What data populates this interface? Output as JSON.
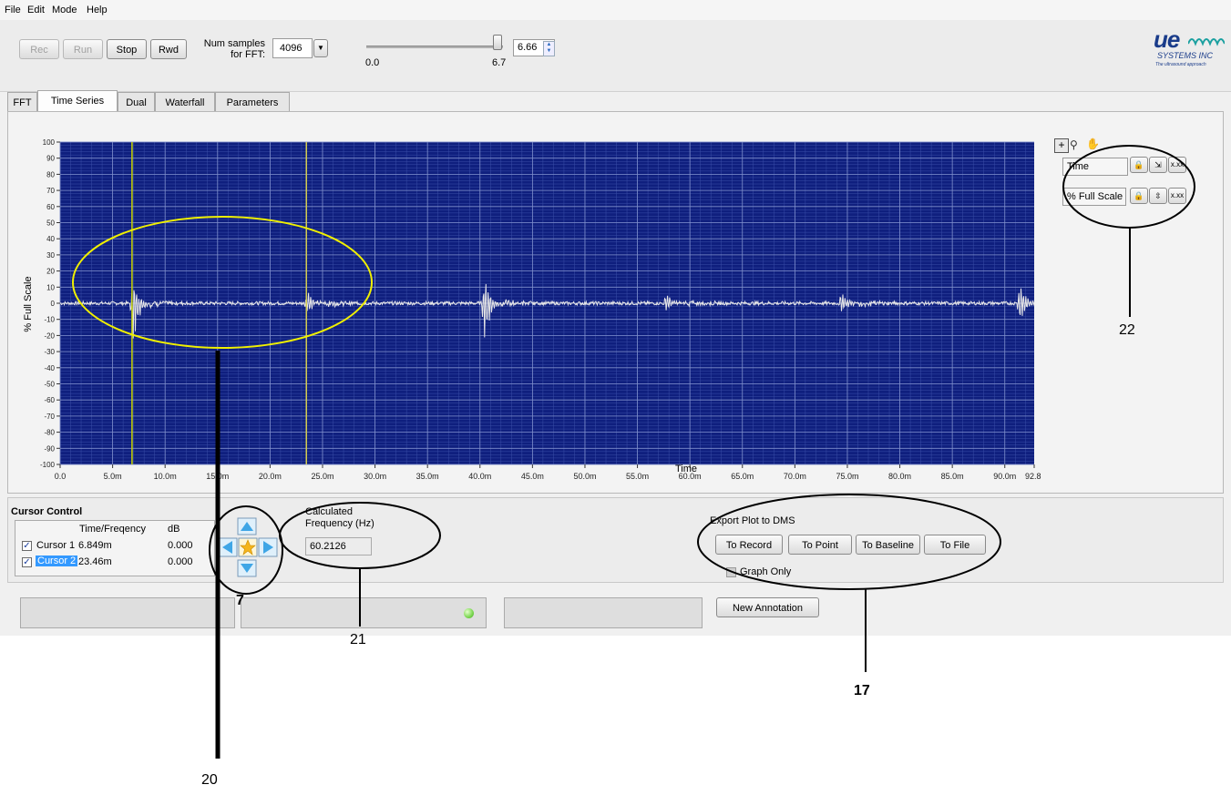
{
  "menu": [
    "File",
    "Edit",
    "Mode",
    "Help"
  ],
  "toolbar": {
    "rec_label": "Rec",
    "run_label": "Run",
    "stop_label": "Stop",
    "rwd_label": "Rwd",
    "num_samples_label_1": "Num samples",
    "num_samples_label_2": "for FFT:",
    "num_samples_value": "4096",
    "slider_min": "0.0",
    "slider_max": "6.7",
    "slider_position": 1.0,
    "slider_value": "6.66"
  },
  "logo": {
    "brand": "ue",
    "company": "SYSTEMS INC",
    "tagline": "The ultrasound approach"
  },
  "tabs": [
    {
      "label": "FFT",
      "active": false
    },
    {
      "label": "Time Series",
      "active": true
    },
    {
      "label": "Dual",
      "active": false
    },
    {
      "label": "Waterfall",
      "active": false
    },
    {
      "label": "Parameters",
      "active": false
    }
  ],
  "graph_palette": {
    "x_axis_name": "Time",
    "y_axis_name": "% Full Scale"
  },
  "chart_data": {
    "type": "line",
    "title": "",
    "xlabel": "Time",
    "ylabel": "% Full Scale",
    "xlim": [
      0,
      92.8
    ],
    "ylim": [
      -100,
      100
    ],
    "x_unit": "ms",
    "grid": true,
    "x_ticks": [
      "0.0",
      "5.0m",
      "10.0m",
      "15.0m",
      "20.0m",
      "25.0m",
      "30.0m",
      "35.0m",
      "40.0m",
      "45.0m",
      "50.0m",
      "55.0m",
      "60.0m",
      "65.0m",
      "70.0m",
      "75.0m",
      "80.0m",
      "85.0m",
      "90.0m",
      "92.8"
    ],
    "y_ticks": [
      "100",
      "90",
      "80",
      "70",
      "60",
      "50",
      "40",
      "30",
      "20",
      "10",
      "0",
      "-10",
      "-20",
      "-30",
      "-40",
      "-50",
      "-60",
      "-70",
      "-80",
      "-90",
      "-100"
    ],
    "series": [
      {
        "color": "#e8e8e8",
        "bursts": [
          {
            "t": 7.0,
            "max": 12,
            "min": -26
          },
          {
            "t": 23.6,
            "max": 8,
            "min": -6
          },
          {
            "t": 40.5,
            "max": 15,
            "min": -25
          },
          {
            "t": 57.8,
            "max": 6,
            "min": -4
          },
          {
            "t": 74.5,
            "max": 8,
            "min": -6
          },
          {
            "t": 91.5,
            "max": 12,
            "min": -12
          }
        ]
      }
    ],
    "cursors": [
      {
        "name": "Cursor 1",
        "x": 6.849,
        "color": "#c8d400"
      },
      {
        "name": "Cursor 2",
        "x": 23.46,
        "color": "#d2cc52"
      }
    ]
  },
  "cursor_control": {
    "title": "Cursor Control",
    "col_time": "Time/Freqency",
    "col_db": "dB",
    "rows": [
      {
        "name": "Cursor 1",
        "time": "6.849m",
        "db": "0.000",
        "checked": true,
        "selected": false
      },
      {
        "name": "Cursor 2",
        "time": "23.46m",
        "db": "0.000",
        "checked": true,
        "selected": true
      }
    ]
  },
  "calc": {
    "label_1": "Calculated",
    "label_2": "Frequency (Hz)",
    "value": "60.2126"
  },
  "export": {
    "title": "Export Plot to DMS",
    "to_record": "To Record",
    "to_point": "To Point",
    "to_baseline": "To Baseline",
    "to_file": "To File",
    "graph_only": "Graph Only"
  },
  "status": {
    "new_annotation": "New Annotation"
  },
  "annotations": {
    "n7": "7",
    "n17": "17",
    "n20": "20",
    "n21": "21",
    "n22": "22"
  }
}
